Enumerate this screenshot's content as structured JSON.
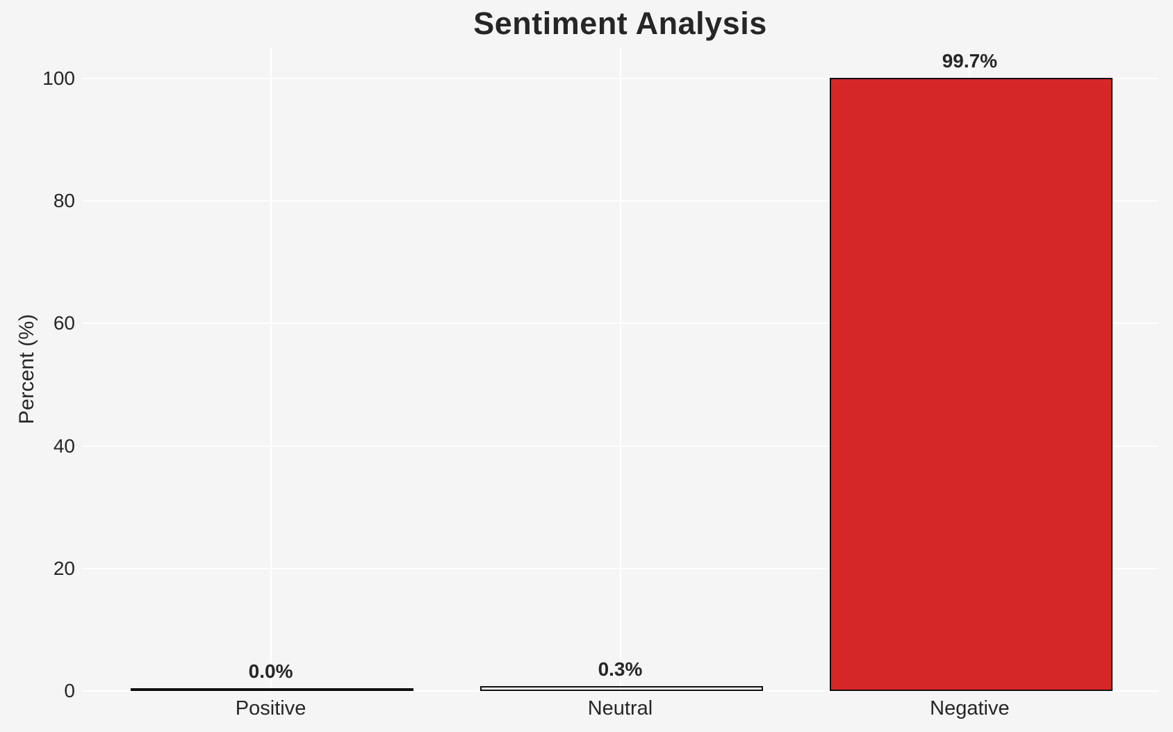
{
  "chart_data": {
    "type": "bar",
    "title": "Sentiment Analysis",
    "categories": [
      "Positive",
      "Neutral",
      "Negative"
    ],
    "values": [
      0.0,
      0.3,
      99.7
    ],
    "value_labels": [
      "0.0%",
      "0.3%",
      "99.7%"
    ],
    "xlabel": "",
    "ylabel": "Percent (%)",
    "ylim": [
      0,
      105
    ],
    "yticks": [
      0,
      20,
      40,
      60,
      80,
      100
    ],
    "grid": true,
    "legend": false,
    "colors": {
      "background": "#f5f5f6",
      "gridline": "#ffffff",
      "text": "#262626",
      "bar_fills": [
        "transparent",
        "transparent",
        "#d62728"
      ],
      "bar_edge": "#0e0e0e"
    }
  }
}
